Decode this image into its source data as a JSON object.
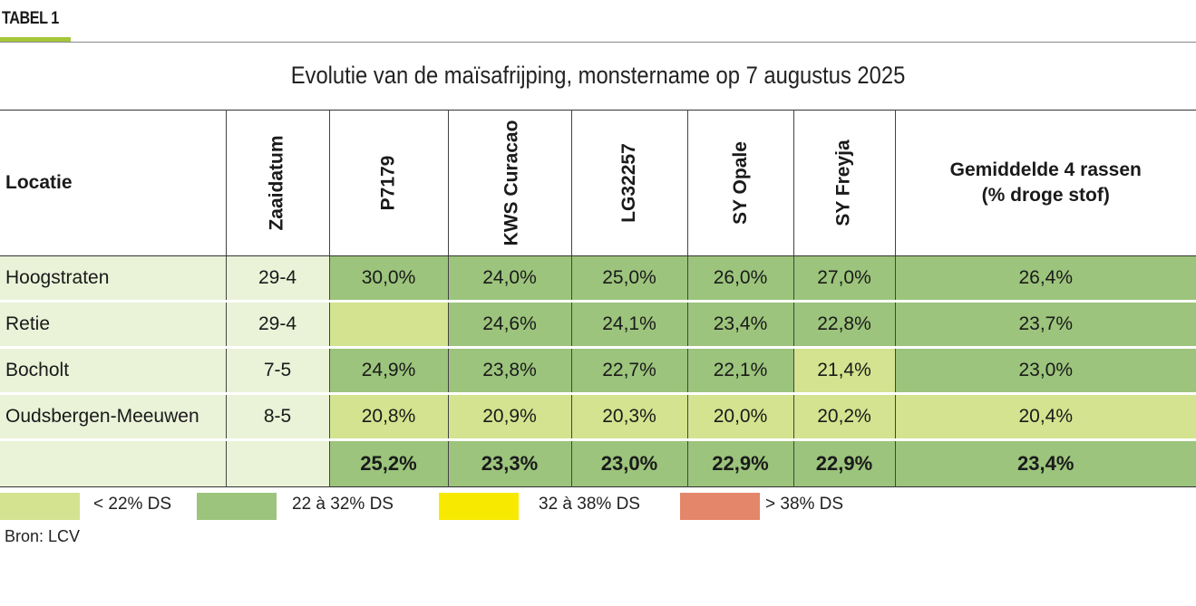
{
  "label": "TABEL 1",
  "title": "Evolutie van de maïsafrijping, monstername op 7 augustus 2025",
  "colors": {
    "accent": "#a6c63a",
    "pale": "#eaf2d8",
    "light_green": "#d3e38f",
    "mid_green": "#9cc47c",
    "yellow": "#f7ea00",
    "orange": "#e4866a"
  },
  "table": {
    "headers": {
      "locatie": "Locatie",
      "zaaidatum": "Zaaidatum",
      "p7179": "P7179",
      "kws": "KWS Curacao",
      "lg": "LG32257",
      "opale": "SY Opale",
      "freyja": "SY Freyja",
      "avg_line1": "Gemiddelde 4 rassen",
      "avg_line2": "(% droge stof)"
    },
    "rows": [
      {
        "locatie": "Hoogstraten",
        "zaaidatum": "29-4",
        "p7179": "30,0%",
        "kws": "24,0%",
        "lg": "25,0%",
        "opale": "26,0%",
        "freyja": "27,0%",
        "avg": "26,4%"
      },
      {
        "locatie": "Retie",
        "zaaidatum": "29-4",
        "p7179": "",
        "kws": "24,6%",
        "lg": "24,1%",
        "opale": "23,4%",
        "freyja": "22,8%",
        "avg": "23,7%"
      },
      {
        "locatie": "Bocholt",
        "zaaidatum": "7-5",
        "p7179": "24,9%",
        "kws": "23,8%",
        "lg": "22,7%",
        "opale": "22,1%",
        "freyja": "21,4%",
        "avg": "23,0%"
      },
      {
        "locatie": "Oudsbergen-Meeuwen",
        "zaaidatum": "8-5",
        "p7179": "20,8%",
        "kws": "20,9%",
        "lg": "20,3%",
        "opale": "20,0%",
        "freyja": "20,2%",
        "avg": "20,4%"
      }
    ],
    "averages": {
      "p7179": "25,2%",
      "kws": "23,3%",
      "lg": "23,0%",
      "opale": "22,9%",
      "freyja": "22,9%",
      "avg": "23,4%"
    }
  },
  "legend": [
    {
      "label": "< 22% DS",
      "color": "#d3e38f"
    },
    {
      "label": "22 à 32% DS",
      "color": "#9cc47c"
    },
    {
      "label": "32 à 38% DS",
      "color": "#f7ea00"
    },
    {
      "label": "> 38% DS",
      "color": "#e4866a"
    }
  ],
  "source": "Bron: LCV"
}
